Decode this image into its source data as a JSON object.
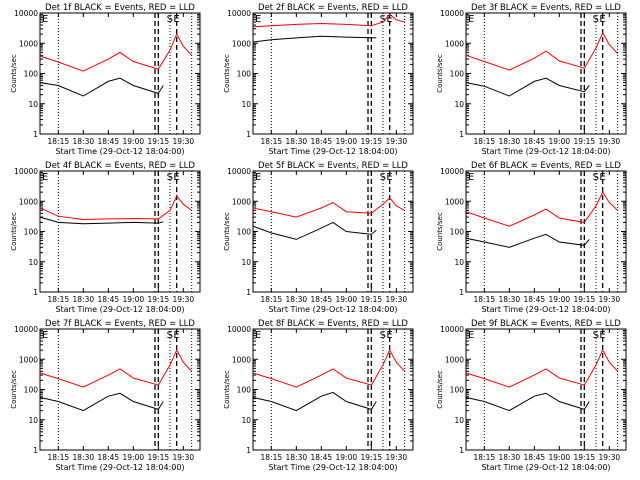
{
  "colors": {
    "events": "#000000",
    "lld": "#ff0000",
    "axes": "#000000"
  },
  "chart_data": [
    {
      "type": "line",
      "title": "Det 1f BLACK = Events, RED = LLD",
      "xlabel": "Start Time (29-Oct-12 18:04:00)",
      "ylabel": "Counts/sec",
      "x_ticks": [
        "18:15",
        "18:30",
        "18:45",
        "19:00",
        "19:15",
        "19:30"
      ],
      "y_ticks": [
        "1",
        "10",
        "100",
        "1000",
        "10000"
      ],
      "ylim": [
        1,
        10000
      ],
      "y_scale": "log",
      "series": [
        {
          "name": "Events",
          "color": "black",
          "x": [
            "18:04",
            "18:15",
            "18:30",
            "18:45",
            "18:52",
            "19:00",
            "19:15",
            "19:18"
          ],
          "y": [
            50,
            40,
            18,
            55,
            70,
            40,
            22,
            40
          ]
        },
        {
          "name": "LLD",
          "color": "red",
          "x": [
            "18:04",
            "18:15",
            "18:30",
            "18:45",
            "18:52",
            "19:00",
            "19:15",
            "19:22",
            "19:26",
            "19:30",
            "19:35"
          ],
          "y": [
            380,
            240,
            120,
            300,
            500,
            250,
            140,
            600,
            2000,
            800,
            400
          ]
        }
      ],
      "annotations": [
        "E",
        "S",
        "E"
      ]
    },
    {
      "type": "line",
      "title": "Det 2f BLACK = Events, RED = LLD",
      "xlabel": "Start Time (29-Oct-12 18:04:00)",
      "ylabel": "Counts/sec",
      "x_ticks": [
        "18:15",
        "18:30",
        "18:45",
        "19:00",
        "19:15",
        "19:30"
      ],
      "y_ticks": [
        "1",
        "10",
        "100",
        "1000",
        "10000"
      ],
      "ylim": [
        1,
        10000
      ],
      "y_scale": "log",
      "series": [
        {
          "name": "Events",
          "color": "black",
          "x": [
            "18:04",
            "18:15",
            "18:30",
            "18:45",
            "19:00",
            "19:18"
          ],
          "y": [
            1100,
            1300,
            1500,
            1700,
            1600,
            1500
          ]
        },
        {
          "name": "LLD",
          "color": "red",
          "x": [
            "18:04",
            "18:15",
            "18:30",
            "18:45",
            "19:00",
            "19:15",
            "19:22",
            "19:26",
            "19:30",
            "19:35"
          ],
          "y": [
            3500,
            3800,
            4200,
            4500,
            4200,
            3800,
            5000,
            9000,
            6000,
            5000
          ]
        }
      ],
      "annotations": [
        "E",
        "S",
        "E"
      ]
    },
    {
      "type": "line",
      "title": "Det 3f BLACK = Events, RED = LLD",
      "xlabel": "Start Time (29-Oct-12 18:04:00)",
      "ylabel": "Counts/sec",
      "x_ticks": [
        "18:15",
        "18:30",
        "18:45",
        "19:00",
        "19:15",
        "19:30"
      ],
      "y_ticks": [
        "1",
        "10",
        "100",
        "1000",
        "10000"
      ],
      "ylim": [
        1,
        10000
      ],
      "y_scale": "log",
      "series": [
        {
          "name": "Events",
          "color": "black",
          "x": [
            "18:04",
            "18:15",
            "18:30",
            "18:45",
            "18:52",
            "19:00",
            "19:15",
            "19:18"
          ],
          "y": [
            50,
            38,
            18,
            55,
            70,
            40,
            25,
            40
          ]
        },
        {
          "name": "LLD",
          "color": "red",
          "x": [
            "18:04",
            "18:15",
            "18:30",
            "18:45",
            "18:52",
            "19:00",
            "19:15",
            "19:22",
            "19:26",
            "19:30",
            "19:35"
          ],
          "y": [
            400,
            250,
            130,
            320,
            550,
            260,
            150,
            700,
            2200,
            900,
            450
          ]
        }
      ],
      "annotations": [
        "E",
        "S",
        "E"
      ]
    },
    {
      "type": "line",
      "title": "Det 4f BLACK = Events, RED = LLD",
      "xlabel": "Start Time (29-Oct-12 18:04:00)",
      "ylabel": "Counts/sec",
      "x_ticks": [
        "18:15",
        "18:30",
        "18:45",
        "19:00",
        "19:15",
        "19:30"
      ],
      "y_ticks": [
        "1",
        "10",
        "100",
        "1000",
        "10000"
      ],
      "ylim": [
        1,
        10000
      ],
      "y_scale": "log",
      "series": [
        {
          "name": "Events",
          "color": "black",
          "x": [
            "18:04",
            "18:15",
            "18:30",
            "18:45",
            "19:00",
            "19:15",
            "19:18"
          ],
          "y": [
            300,
            200,
            180,
            190,
            200,
            190,
            210
          ]
        },
        {
          "name": "LLD",
          "color": "red",
          "x": [
            "18:04",
            "18:15",
            "18:30",
            "18:45",
            "19:00",
            "19:15",
            "19:22",
            "19:26",
            "19:30",
            "19:35"
          ],
          "y": [
            600,
            320,
            250,
            260,
            270,
            260,
            500,
            1500,
            800,
            500
          ]
        }
      ],
      "annotations": [
        "E",
        "S",
        "E"
      ]
    },
    {
      "type": "line",
      "title": "Det 5f BLACK = Events, RED = LLD",
      "xlabel": "Start Time (29-Oct-12 18:04:00)",
      "ylabel": "Counts/sec",
      "x_ticks": [
        "18:15",
        "18:30",
        "18:45",
        "19:00",
        "19:15",
        "19:30"
      ],
      "y_ticks": [
        "1",
        "10",
        "100",
        "1000",
        "10000"
      ],
      "ylim": [
        1,
        10000
      ],
      "y_scale": "log",
      "series": [
        {
          "name": "Events",
          "color": "black",
          "x": [
            "18:04",
            "18:15",
            "18:30",
            "18:45",
            "18:52",
            "19:00",
            "19:15",
            "19:18"
          ],
          "y": [
            150,
            90,
            55,
            130,
            200,
            100,
            80,
            110
          ]
        },
        {
          "name": "LLD",
          "color": "red",
          "x": [
            "18:04",
            "18:15",
            "18:30",
            "18:45",
            "18:52",
            "19:00",
            "19:15",
            "19:22",
            "19:26",
            "19:30",
            "19:35"
          ],
          "y": [
            600,
            450,
            300,
            600,
            900,
            450,
            400,
            800,
            1300,
            700,
            500
          ]
        }
      ],
      "annotations": [
        "E",
        "S",
        "E"
      ]
    },
    {
      "type": "line",
      "title": "Det 6f BLACK = Events, RED = LLD",
      "xlabel": "Start Time (29-Oct-12 18:04:00)",
      "ylabel": "Counts/sec",
      "x_ticks": [
        "18:15",
        "18:30",
        "18:45",
        "19:00",
        "19:15",
        "19:30"
      ],
      "y_ticks": [
        "1",
        "10",
        "100",
        "1000",
        "10000"
      ],
      "ylim": [
        1,
        10000
      ],
      "y_scale": "log",
      "series": [
        {
          "name": "Events",
          "color": "black",
          "x": [
            "18:04",
            "18:15",
            "18:30",
            "18:45",
            "18:52",
            "19:00",
            "19:15",
            "19:18"
          ],
          "y": [
            60,
            45,
            30,
            60,
            80,
            45,
            35,
            55
          ]
        },
        {
          "name": "LLD",
          "color": "red",
          "x": [
            "18:04",
            "18:15",
            "18:30",
            "18:45",
            "18:52",
            "19:00",
            "19:15",
            "19:22",
            "19:26",
            "19:30",
            "19:35"
          ],
          "y": [
            450,
            280,
            150,
            350,
            550,
            280,
            200,
            700,
            2000,
            900,
            500
          ]
        }
      ],
      "annotations": [
        "E",
        "S",
        "E"
      ]
    },
    {
      "type": "line",
      "title": "Det 7f BLACK = Events, RED = LLD",
      "xlabel": "Start Time (29-Oct-12 18:04:00)",
      "ylabel": "Counts/sec",
      "x_ticks": [
        "18:15",
        "18:30",
        "18:45",
        "19:00",
        "19:15",
        "19:30"
      ],
      "y_ticks": [
        "1",
        "10",
        "100",
        "1000",
        "10000"
      ],
      "ylim": [
        1,
        10000
      ],
      "y_scale": "log",
      "series": [
        {
          "name": "Events",
          "color": "black",
          "x": [
            "18:04",
            "18:15",
            "18:30",
            "18:45",
            "18:52",
            "19:00",
            "19:15",
            "19:18"
          ],
          "y": [
            55,
            40,
            20,
            60,
            75,
            40,
            22,
            40
          ]
        },
        {
          "name": "LLD",
          "color": "red",
          "x": [
            "18:04",
            "18:15",
            "18:30",
            "18:45",
            "18:52",
            "19:00",
            "19:15",
            "19:22",
            "19:26",
            "19:30",
            "19:35"
          ],
          "y": [
            350,
            230,
            120,
            300,
            480,
            240,
            140,
            650,
            2000,
            800,
            400
          ]
        }
      ],
      "annotations": [
        "E",
        "S",
        "E"
      ]
    },
    {
      "type": "line",
      "title": "Det 8f BLACK = Events, RED = LLD",
      "xlabel": "Start Time (29-Oct-12 18:04:00)",
      "ylabel": "Counts/sec",
      "x_ticks": [
        "18:15",
        "18:30",
        "18:45",
        "19:00",
        "19:15",
        "19:30"
      ],
      "y_ticks": [
        "1",
        "10",
        "100",
        "1000",
        "10000"
      ],
      "ylim": [
        1,
        10000
      ],
      "y_scale": "log",
      "series": [
        {
          "name": "Events",
          "color": "black",
          "x": [
            "18:04",
            "18:15",
            "18:30",
            "18:45",
            "18:52",
            "19:00",
            "19:15",
            "19:18"
          ],
          "y": [
            55,
            40,
            20,
            60,
            80,
            40,
            22,
            40
          ]
        },
        {
          "name": "LLD",
          "color": "red",
          "x": [
            "18:04",
            "18:15",
            "18:30",
            "18:45",
            "18:52",
            "19:00",
            "19:15",
            "19:22",
            "19:26",
            "19:30",
            "19:35"
          ],
          "y": [
            350,
            230,
            120,
            300,
            480,
            240,
            140,
            650,
            2000,
            800,
            400
          ]
        }
      ],
      "annotations": [
        "E",
        "S",
        "E"
      ]
    },
    {
      "type": "line",
      "title": "Det 9f BLACK = Events, RED = LLD",
      "xlabel": "Start Time (29-Oct-12 18:04:00)",
      "ylabel": "Counts/sec",
      "x_ticks": [
        "18:15",
        "18:30",
        "18:45",
        "19:00",
        "19:15",
        "19:30"
      ],
      "y_ticks": [
        "1",
        "10",
        "100",
        "1000",
        "10000"
      ],
      "ylim": [
        1,
        10000
      ],
      "y_scale": "log",
      "series": [
        {
          "name": "Events",
          "color": "black",
          "x": [
            "18:04",
            "18:15",
            "18:30",
            "18:45",
            "18:52",
            "19:00",
            "19:15",
            "19:18"
          ],
          "y": [
            55,
            40,
            20,
            60,
            75,
            40,
            22,
            40
          ]
        },
        {
          "name": "LLD",
          "color": "red",
          "x": [
            "18:04",
            "18:15",
            "18:30",
            "18:45",
            "18:52",
            "19:00",
            "19:15",
            "19:22",
            "19:26",
            "19:30",
            "19:35"
          ],
          "y": [
            350,
            230,
            120,
            300,
            480,
            240,
            140,
            650,
            2000,
            800,
            400
          ]
        }
      ],
      "annotations": [
        "E",
        "S",
        "E"
      ]
    }
  ]
}
